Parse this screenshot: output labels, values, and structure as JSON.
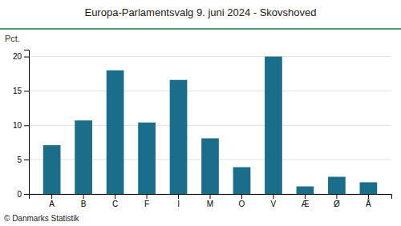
{
  "chart_data": {
    "type": "bar",
    "title": "Europa-Parlamentsvalg 9. juni 2024 - Skovshoved",
    "ylabel": "Pct.",
    "footer": "© Danmarks Statistik",
    "categories": [
      "A",
      "B",
      "C",
      "F",
      "I",
      "M",
      "O",
      "V",
      "Æ",
      "Ø",
      "Å"
    ],
    "values": [
      7.1,
      10.7,
      18.0,
      10.4,
      16.6,
      8.1,
      3.9,
      20.0,
      1.1,
      2.5,
      1.7
    ],
    "color": "#1a6e8a",
    "ylim": [
      0,
      21
    ],
    "yticks": [
      0,
      5,
      10,
      15,
      20
    ],
    "grid": true
  }
}
